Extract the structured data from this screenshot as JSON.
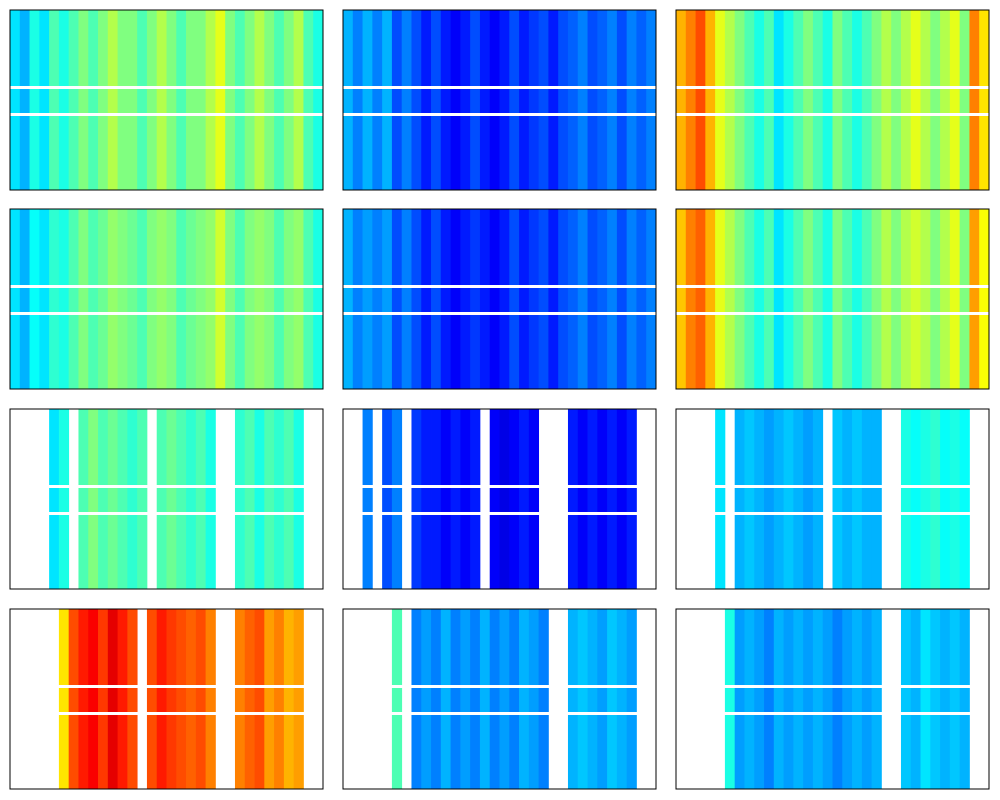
{
  "chart_data": [
    {
      "type": "heatmap",
      "colormap": "jet",
      "zlim": [
        0,
        1
      ],
      "values": [
        0.35,
        0.3,
        0.4,
        0.35,
        0.45,
        0.4,
        0.45,
        0.5,
        0.45,
        0.5,
        0.55,
        0.5,
        0.5,
        0.45,
        0.5,
        0.55,
        0.5,
        0.45,
        0.5,
        0.5,
        0.55,
        0.6,
        0.5,
        0.45,
        0.5,
        0.55,
        0.5,
        0.45,
        0.5,
        0.55,
        0.45,
        0.4
      ]
    },
    {
      "type": "heatmap",
      "colormap": "jet",
      "zlim": [
        0,
        1
      ],
      "values": [
        0.3,
        0.25,
        0.3,
        0.25,
        0.3,
        0.2,
        0.25,
        0.2,
        0.15,
        0.2,
        0.15,
        0.12,
        0.15,
        0.2,
        0.15,
        0.12,
        0.15,
        0.2,
        0.15,
        0.18,
        0.2,
        0.15,
        0.2,
        0.22,
        0.25,
        0.2,
        0.22,
        0.25,
        0.2,
        0.25,
        0.22,
        0.25
      ]
    },
    {
      "type": "heatmap",
      "colormap": "jet",
      "zlim": [
        0,
        1
      ],
      "values": [
        0.7,
        0.75,
        0.8,
        0.7,
        0.6,
        0.55,
        0.5,
        0.45,
        0.4,
        0.45,
        0.35,
        0.4,
        0.45,
        0.5,
        0.45,
        0.4,
        0.5,
        0.45,
        0.4,
        0.45,
        0.5,
        0.55,
        0.5,
        0.55,
        0.6,
        0.55,
        0.5,
        0.55,
        0.6,
        0.5,
        0.75,
        0.65
      ]
    },
    {
      "type": "heatmap",
      "colormap": "jet",
      "zlim": [
        0,
        1
      ],
      "values": [
        0.35,
        0.3,
        0.38,
        0.35,
        0.42,
        0.4,
        0.45,
        0.5,
        0.45,
        0.48,
        0.52,
        0.5,
        0.48,
        0.45,
        0.5,
        0.52,
        0.5,
        0.45,
        0.48,
        0.5,
        0.52,
        0.58,
        0.5,
        0.45,
        0.5,
        0.52,
        0.5,
        0.45,
        0.5,
        0.52,
        0.45,
        0.4
      ]
    },
    {
      "type": "heatmap",
      "colormap": "jet",
      "zlim": [
        0,
        1
      ],
      "values": [
        0.3,
        0.25,
        0.28,
        0.25,
        0.28,
        0.2,
        0.25,
        0.2,
        0.15,
        0.2,
        0.15,
        0.12,
        0.15,
        0.18,
        0.15,
        0.12,
        0.15,
        0.2,
        0.15,
        0.18,
        0.2,
        0.15,
        0.2,
        0.22,
        0.25,
        0.2,
        0.22,
        0.25,
        0.2,
        0.25,
        0.22,
        0.25
      ]
    },
    {
      "type": "heatmap",
      "colormap": "jet",
      "zlim": [
        0,
        1
      ],
      "values": [
        0.68,
        0.75,
        0.78,
        0.7,
        0.6,
        0.55,
        0.5,
        0.45,
        0.4,
        0.45,
        0.35,
        0.4,
        0.45,
        0.5,
        0.45,
        0.4,
        0.5,
        0.45,
        0.4,
        0.45,
        0.5,
        0.55,
        0.5,
        0.55,
        0.58,
        0.55,
        0.5,
        0.55,
        0.6,
        0.5,
        0.72,
        0.62
      ]
    },
    {
      "type": "heatmap",
      "colormap": "jet",
      "zlim": [
        0,
        1
      ],
      "values": [
        null,
        null,
        null,
        null,
        0.35,
        0.4,
        null,
        0.45,
        0.5,
        0.45,
        0.48,
        0.45,
        0.42,
        0.45,
        null,
        0.45,
        0.48,
        0.45,
        0.42,
        0.45,
        0.4,
        null,
        null,
        0.42,
        0.45,
        0.4,
        0.45,
        0.42,
        0.45,
        0.4,
        null,
        null
      ]
    },
    {
      "type": "heatmap",
      "colormap": "jet",
      "zlim": [
        0,
        1
      ],
      "values": [
        null,
        null,
        0.25,
        null,
        0.2,
        0.25,
        null,
        0.18,
        0.15,
        0.15,
        0.12,
        0.15,
        0.12,
        0.15,
        null,
        0.12,
        0.1,
        0.12,
        0.15,
        0.12,
        null,
        null,
        null,
        0.15,
        0.12,
        0.15,
        0.12,
        0.15,
        0.12,
        0.15,
        null,
        null
      ]
    },
    {
      "type": "heatmap",
      "colormap": "jet",
      "zlim": [
        0,
        1
      ],
      "values": [
        null,
        null,
        null,
        null,
        0.35,
        null,
        0.3,
        0.32,
        0.3,
        0.28,
        0.3,
        0.32,
        0.3,
        0.28,
        0.3,
        null,
        0.32,
        0.3,
        0.32,
        0.3,
        0.3,
        null,
        null,
        0.4,
        0.38,
        0.4,
        0.42,
        0.38,
        0.4,
        0.38,
        null,
        null
      ]
    },
    {
      "type": "heatmap",
      "colormap": "jet",
      "zlim": [
        0,
        1
      ],
      "values": [
        null,
        null,
        null,
        null,
        null,
        0.65,
        0.8,
        0.85,
        0.88,
        0.82,
        0.9,
        0.85,
        0.8,
        null,
        0.8,
        0.85,
        0.82,
        0.8,
        0.78,
        0.8,
        0.75,
        null,
        null,
        0.75,
        0.78,
        0.8,
        0.72,
        0.75,
        0.7,
        0.72,
        null,
        null
      ]
    },
    {
      "type": "heatmap",
      "colormap": "jet",
      "zlim": [
        0,
        1
      ],
      "values": [
        null,
        null,
        null,
        null,
        null,
        0.45,
        null,
        0.25,
        0.28,
        0.25,
        0.3,
        0.25,
        0.28,
        0.25,
        0.3,
        0.25,
        0.28,
        0.25,
        0.3,
        0.28,
        0.25,
        null,
        null,
        0.3,
        0.32,
        0.3,
        0.28,
        0.32,
        0.3,
        0.28,
        null,
        null
      ]
    },
    {
      "type": "heatmap",
      "colormap": "jet",
      "zlim": [
        0,
        1
      ],
      "values": [
        null,
        null,
        null,
        null,
        null,
        0.4,
        0.28,
        0.3,
        0.28,
        0.25,
        0.3,
        0.28,
        0.3,
        0.28,
        0.3,
        0.28,
        0.25,
        0.28,
        0.3,
        0.28,
        0.3,
        null,
        null,
        0.32,
        0.3,
        0.35,
        0.32,
        0.3,
        0.32,
        0.3,
        null,
        null
      ]
    }
  ]
}
